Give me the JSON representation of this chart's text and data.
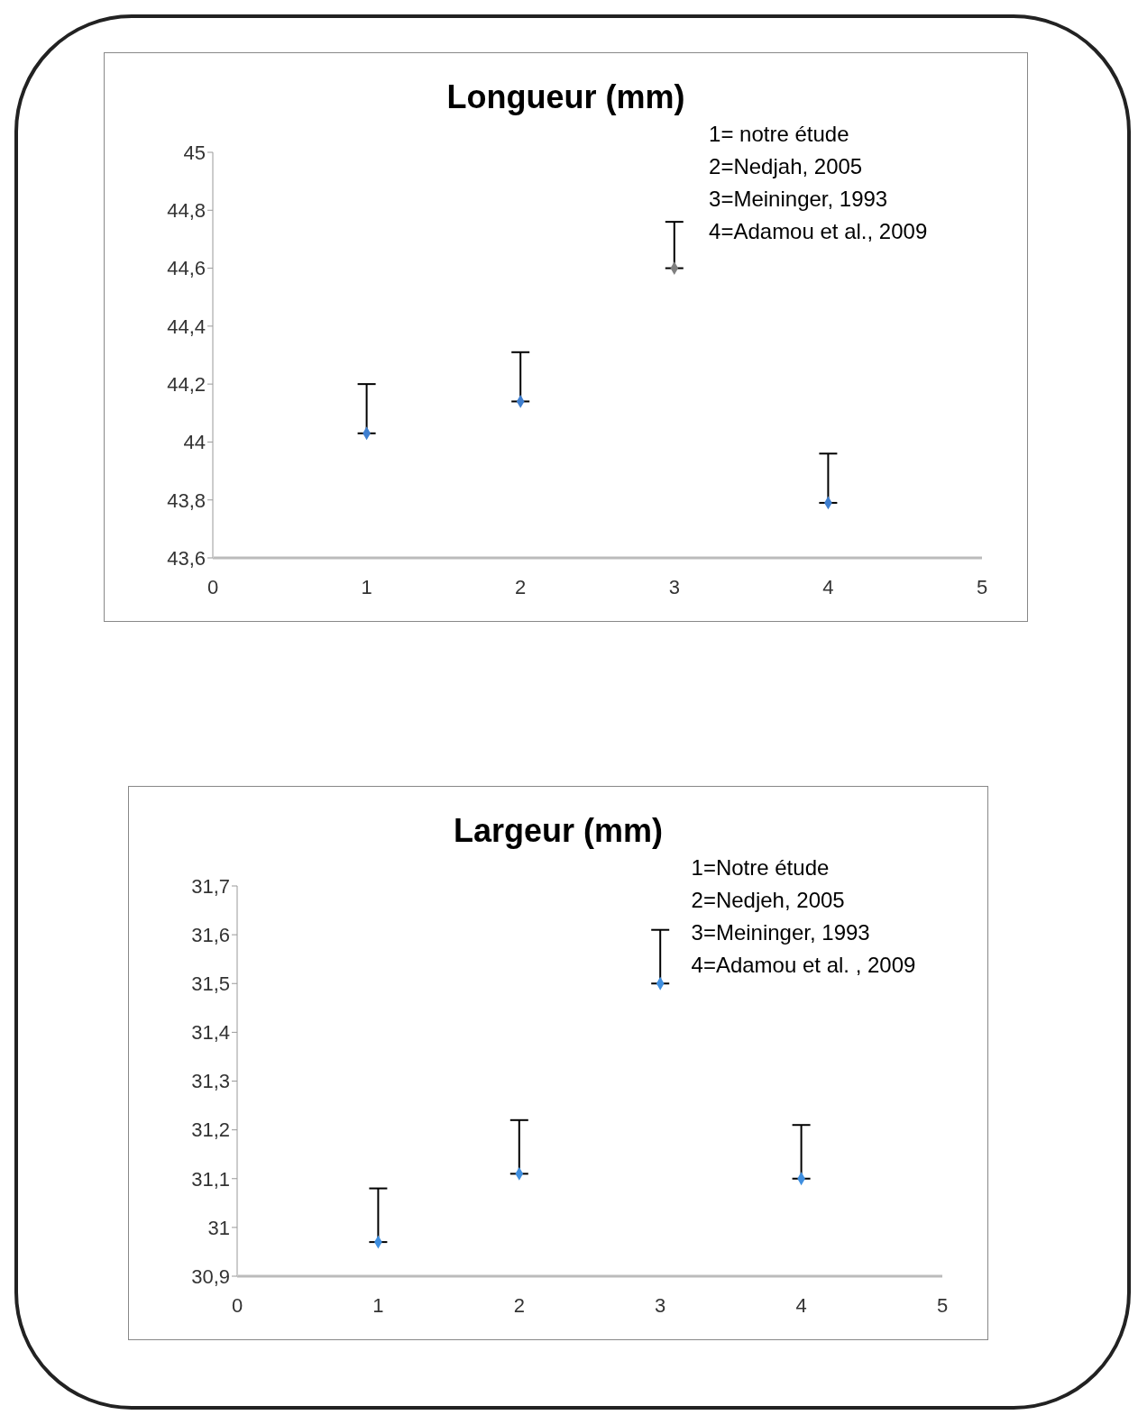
{
  "chart_data": [
    {
      "type": "scatter",
      "title": "Longueur (mm)",
      "x": [
        1,
        2,
        3,
        4
      ],
      "values": [
        44.03,
        44.14,
        44.6,
        43.79
      ],
      "errors": [
        [
          44.03,
          44.2
        ],
        [
          44.14,
          44.31
        ],
        [
          44.6,
          44.76
        ],
        [
          43.79,
          43.96
        ]
      ],
      "colors": [
        "#3f7fd0",
        "#3f7fd0",
        "#808080",
        "#3f7fd0"
      ],
      "marker": "diamond",
      "grid": false,
      "xlim": [
        0,
        5
      ],
      "xticks": [
        0,
        1,
        2,
        3,
        4,
        5
      ],
      "ylim": [
        43.6,
        45
      ],
      "yticks": [
        {
          "value": 43.6,
          "label": "43,6"
        },
        {
          "value": 43.8,
          "label": "43,8"
        },
        {
          "value": 44,
          "label": "44"
        },
        {
          "value": 44.2,
          "label": "44,2"
        },
        {
          "value": 44.4,
          "label": "44,4"
        },
        {
          "value": 44.6,
          "label": "44,6"
        },
        {
          "value": 44.8,
          "label": "44,8"
        },
        {
          "value": 45,
          "label": "45"
        }
      ],
      "annotations": [
        "1= notre étude",
        "2=Nedjah, 2005",
        "3=Meininger, 1993",
        "4=Adamou et al., 2009"
      ]
    },
    {
      "type": "scatter",
      "title": "Largeur (mm)",
      "x": [
        1,
        2,
        3,
        4
      ],
      "values": [
        30.97,
        31.11,
        31.5,
        31.1
      ],
      "errors": [
        [
          30.97,
          31.08
        ],
        [
          31.11,
          31.22
        ],
        [
          31.5,
          31.61
        ],
        [
          31.1,
          31.21
        ]
      ],
      "colors": [
        "#3f8fe0",
        "#3f8fe0",
        "#3f8fe0",
        "#3f8fe0"
      ],
      "marker": "diamond",
      "grid": false,
      "xlim": [
        0,
        5
      ],
      "xticks": [
        0,
        1,
        2,
        3,
        4,
        5
      ],
      "ylim": [
        30.9,
        31.7
      ],
      "yticks": [
        {
          "value": 30.9,
          "label": "30,9"
        },
        {
          "value": 31,
          "label": "31"
        },
        {
          "value": 31.1,
          "label": "31,1"
        },
        {
          "value": 31.2,
          "label": "31,2"
        },
        {
          "value": 31.3,
          "label": "31,3"
        },
        {
          "value": 31.4,
          "label": "31,4"
        },
        {
          "value": 31.5,
          "label": "31,5"
        },
        {
          "value": 31.6,
          "label": "31,6"
        },
        {
          "value": 31.7,
          "label": "31,7"
        }
      ],
      "annotations": [
        "1=Notre étude",
        "2=Nedjeh, 2005",
        "3=Meininger, 1993",
        "4=Adamou et al. , 2009"
      ]
    }
  ]
}
